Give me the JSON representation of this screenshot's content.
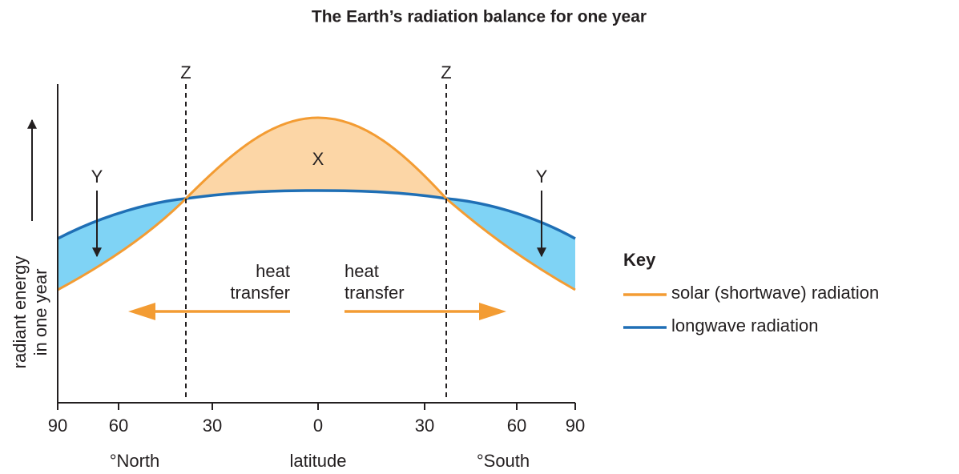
{
  "title": "The Earth’s radiation balance for one year",
  "y_axis_label": [
    "radiant energy",
    "in one year"
  ],
  "x_tick_labels": [
    "90",
    "60",
    "30",
    "0",
    "30",
    "60",
    "90"
  ],
  "x_labels": [
    "°North",
    "latitude",
    "°South"
  ],
  "zone_labels": [
    "Z",
    "Z"
  ],
  "deficit_labels": [
    "Y",
    "Y"
  ],
  "surplus_label": "X",
  "heat_transfer_left": [
    "heat",
    "transfer"
  ],
  "heat_transfer_right": [
    "heat",
    "transfer"
  ],
  "key": {
    "title": "Key",
    "items": [
      "solar (shortwave) radiation",
      "longwave radiation"
    ]
  }
}
